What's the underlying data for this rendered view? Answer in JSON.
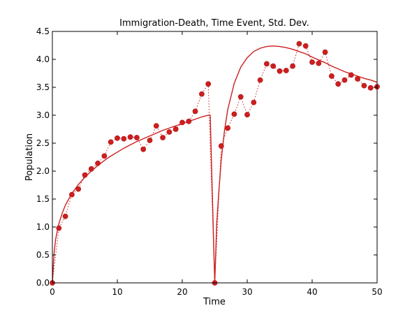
{
  "chart_data": {
    "type": "line",
    "title": "Immigration-Death, Time Event, Std. Dev.",
    "xlabel": "Time",
    "ylabel": "Population",
    "xlim": [
      0,
      50
    ],
    "ylim": [
      0,
      4.5
    ],
    "xticks": [
      0,
      10,
      20,
      30,
      40,
      50
    ],
    "yticks": [
      0.0,
      0.5,
      1.0,
      1.5,
      2.0,
      2.5,
      3.0,
      3.5,
      4.0,
      4.5
    ],
    "xtick_labels": [
      "0",
      "10",
      "20",
      "30",
      "40",
      "50"
    ],
    "ytick_labels": [
      "0.0",
      "0.5",
      "1.0",
      "1.5",
      "2.0",
      "2.5",
      "3.0",
      "3.5",
      "4.0",
      "4.5"
    ],
    "grid": false,
    "legend": "none",
    "colors": {
      "series": "#cc1f1f",
      "axes": "#000000"
    },
    "series": [
      {
        "style": "dotted-with-markers",
        "x": [
          0,
          1,
          2,
          3,
          4,
          5,
          6,
          7,
          8,
          9,
          10,
          11,
          12,
          13,
          14,
          15,
          16,
          17,
          18,
          19,
          20,
          21,
          22,
          23,
          24,
          25,
          26,
          27,
          28,
          29,
          30,
          31,
          32,
          33,
          34,
          35,
          36,
          37,
          38,
          39,
          40,
          41,
          42,
          43,
          44,
          45,
          46,
          47,
          48,
          49,
          50
        ],
        "y": [
          0.0,
          0.98,
          1.19,
          1.58,
          1.68,
          1.93,
          2.04,
          2.14,
          2.27,
          2.52,
          2.59,
          2.58,
          2.61,
          2.6,
          2.39,
          2.55,
          2.81,
          2.6,
          2.7,
          2.75,
          2.87,
          2.89,
          3.07,
          3.38,
          3.56,
          0.0,
          2.45,
          2.77,
          3.02,
          3.33,
          3.01,
          3.23,
          3.63,
          3.92,
          3.88,
          3.79,
          3.8,
          3.88,
          4.28,
          4.24,
          3.95,
          3.93,
          4.13,
          3.7,
          3.56,
          3.63,
          3.72,
          3.65,
          3.53,
          3.49,
          3.51
        ]
      },
      {
        "style": "solid",
        "x": [
          0,
          0.25,
          0.5,
          1,
          1.5,
          2,
          3,
          4,
          5,
          6,
          7,
          8,
          9,
          10,
          11,
          12,
          13,
          14,
          15,
          16,
          17,
          18,
          19,
          20,
          21,
          22,
          23,
          24,
          24.3,
          25,
          25.3,
          25.6,
          26,
          26.5,
          27,
          28,
          29,
          30,
          31,
          32,
          33,
          34,
          35,
          36,
          37,
          38,
          39,
          40,
          41,
          42,
          43,
          44,
          45,
          46,
          47,
          48,
          49,
          50
        ],
        "y": [
          0.0,
          0.52,
          0.78,
          1.06,
          1.24,
          1.39,
          1.6,
          1.76,
          1.89,
          2.0,
          2.1,
          2.19,
          2.27,
          2.34,
          2.41,
          2.47,
          2.53,
          2.58,
          2.63,
          2.68,
          2.73,
          2.77,
          2.81,
          2.85,
          2.89,
          2.93,
          2.97,
          3.0,
          3.0,
          0.0,
          1.05,
          1.58,
          2.2,
          2.72,
          3.1,
          3.57,
          3.86,
          4.03,
          4.14,
          4.2,
          4.23,
          4.24,
          4.23,
          4.21,
          4.18,
          4.14,
          4.1,
          4.04,
          3.99,
          3.94,
          3.88,
          3.83,
          3.78,
          3.74,
          3.7,
          3.66,
          3.63,
          3.59
        ]
      }
    ]
  }
}
